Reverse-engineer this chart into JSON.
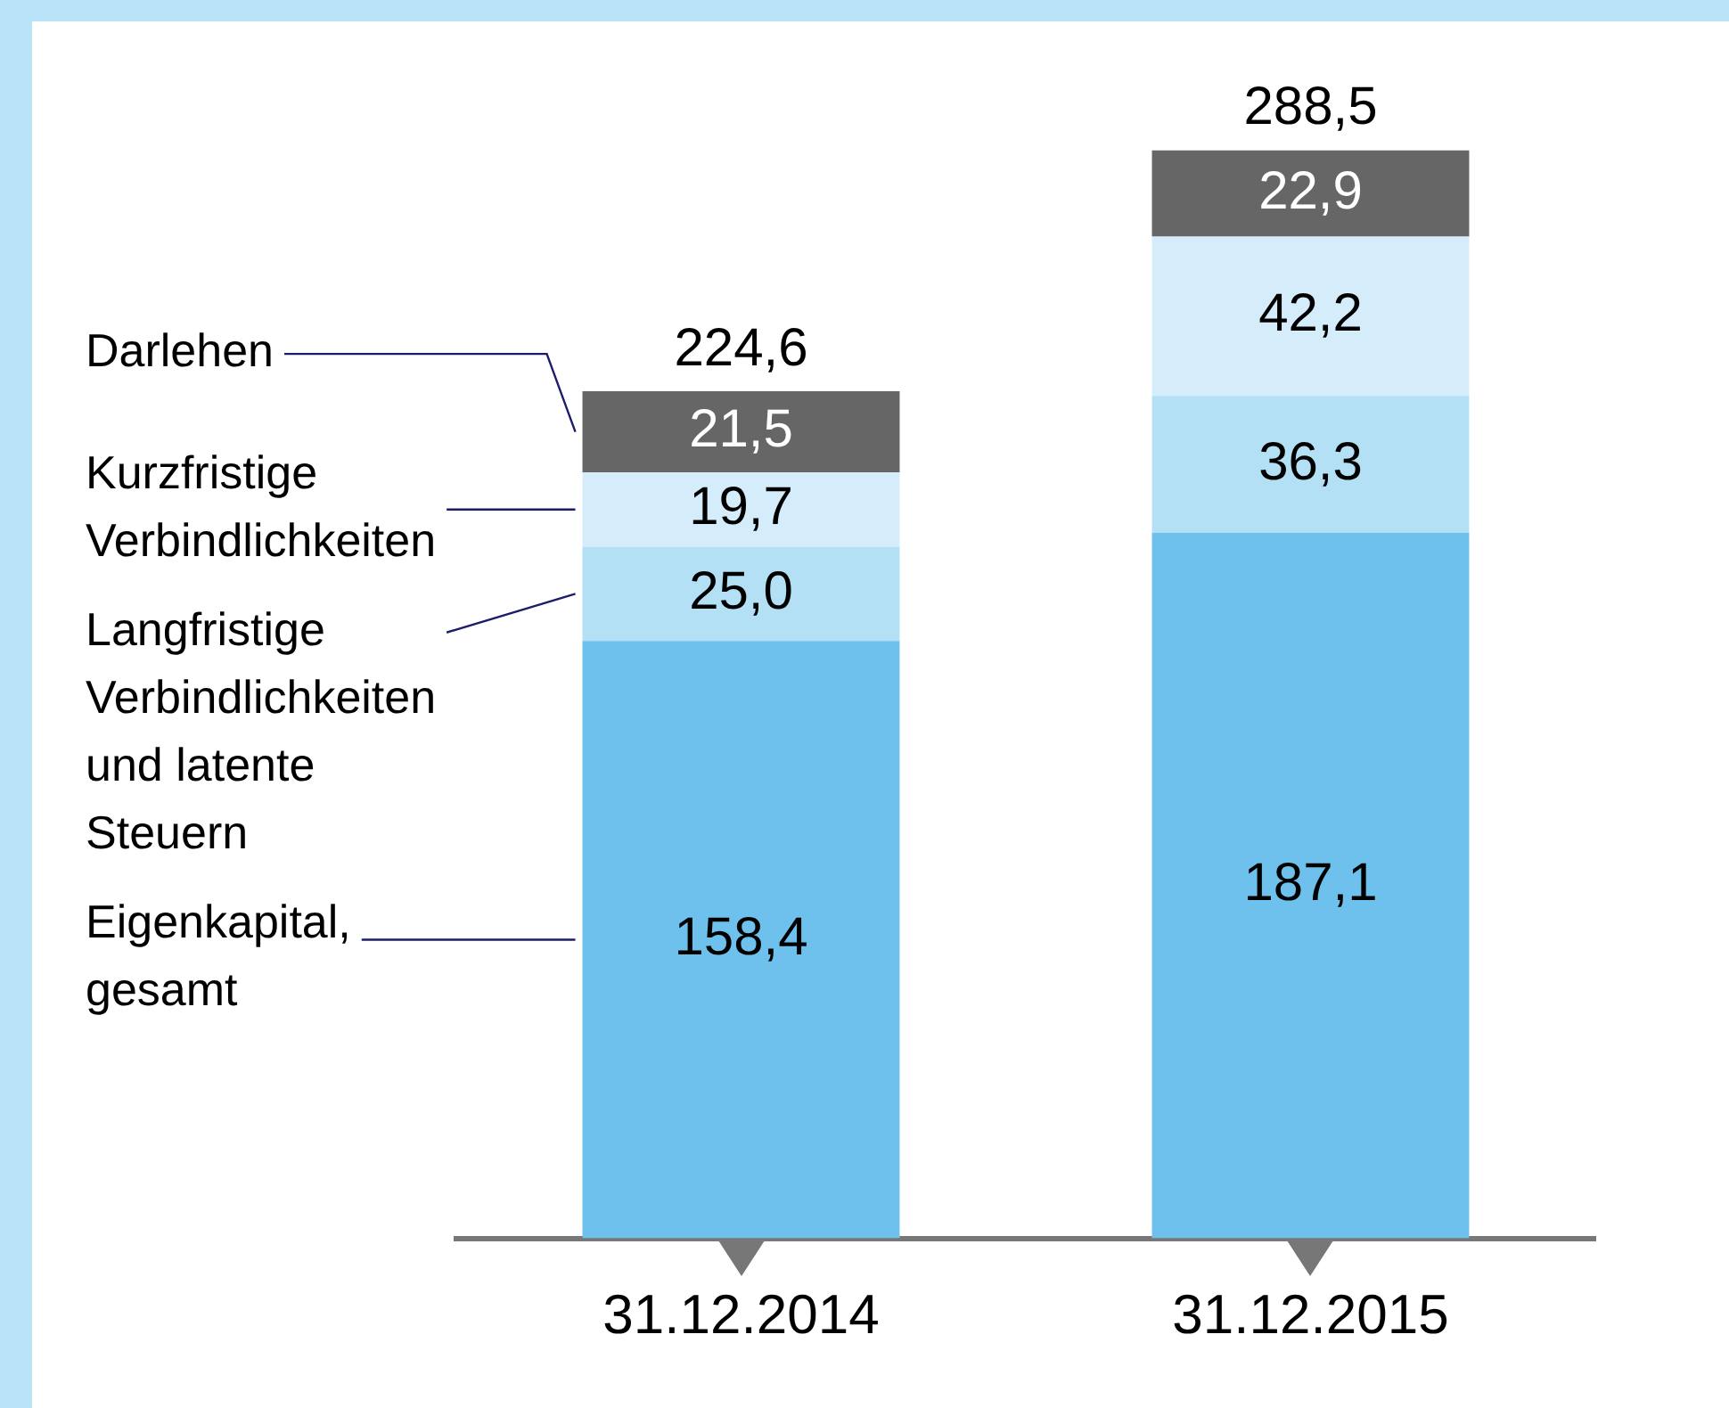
{
  "chart_data": {
    "type": "bar",
    "stacked": true,
    "categories": [
      "31.12.2014",
      "31.12.2015"
    ],
    "series": [
      {
        "name": "Eigenkapital, gesamt",
        "color": "#6ec1ec",
        "values": [
          158.4,
          187.1
        ],
        "value_labels": [
          "158,4",
          "187,1"
        ]
      },
      {
        "name": "Langfristige Verbindlichkeiten und latente Steuern",
        "color": "#b3e0f5",
        "values": [
          25.0,
          36.3
        ],
        "value_labels": [
          "25,0",
          "36,3"
        ]
      },
      {
        "name": "Kurzfristige Verbindlichkeiten",
        "color": "#d5edfa",
        "values": [
          19.7,
          42.2
        ],
        "value_labels": [
          "19,7",
          "42,2"
        ]
      },
      {
        "name": "Darlehen",
        "color": "#666666",
        "values": [
          21.5,
          22.9
        ],
        "value_labels": [
          "21,5",
          "22,9"
        ]
      }
    ],
    "totals": [
      "224,6",
      "288,5"
    ],
    "tick_labels": "x",
    "grid": false,
    "legend": false
  }
}
